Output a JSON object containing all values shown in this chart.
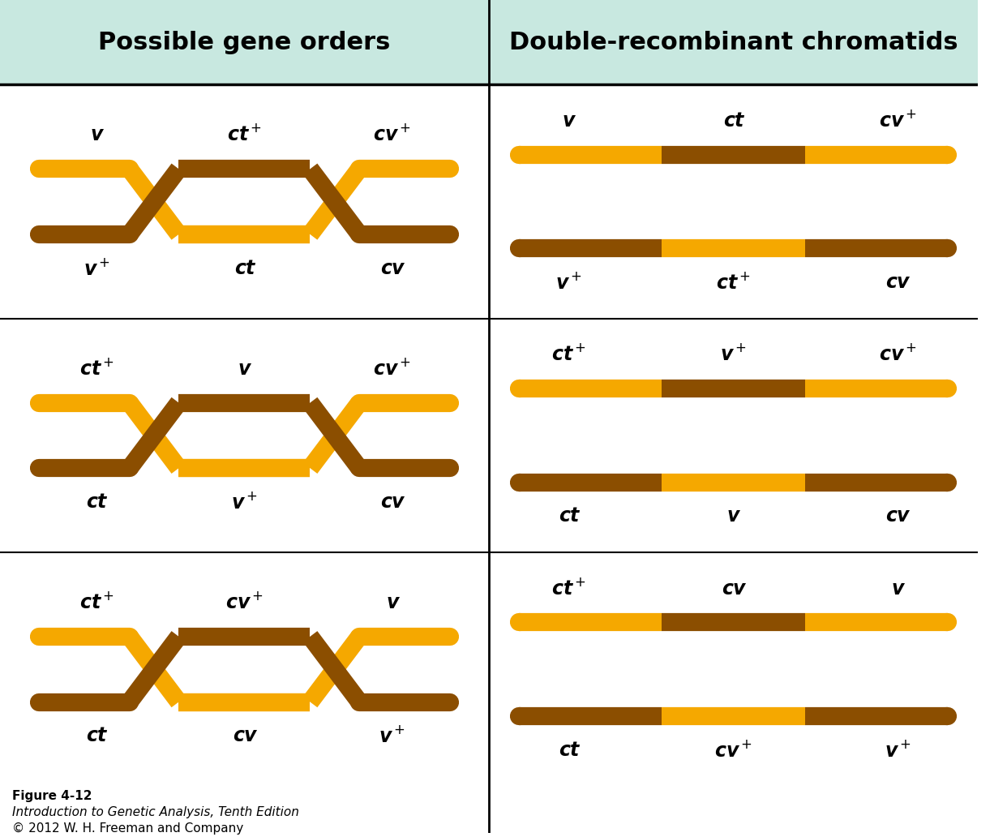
{
  "header_left": "Possible gene orders",
  "header_right": "Double-recombinant chromatids",
  "header_bg": "#c8e8e0",
  "orange_color": "#F5A800",
  "brown_color": "#8B4E00",
  "background_color": "#ffffff",
  "fig_width": 12.42,
  "fig_height": 10.32,
  "rows": [
    {
      "left_labels_top": [
        "v",
        "ct$^+$",
        "cv$^+$"
      ],
      "left_labels_bot": [
        "v$^+$",
        "ct",
        "cv"
      ],
      "right_labels_top": [
        "v",
        "ct",
        "cv$^+$"
      ],
      "right_labels_bot": [
        "v$^+$",
        "ct$^+$",
        "cv"
      ],
      "right_top_segments": [
        "orange",
        "brown",
        "orange"
      ],
      "right_bot_segments": [
        "brown",
        "orange",
        "brown"
      ]
    },
    {
      "left_labels_top": [
        "ct$^+$",
        "v",
        "cv$^+$"
      ],
      "left_labels_bot": [
        "ct",
        "v$^+$",
        "cv"
      ],
      "right_labels_top": [
        "ct$^+$",
        "v$^+$",
        "cv$^+$"
      ],
      "right_labels_bot": [
        "ct",
        "v",
        "cv"
      ],
      "right_top_segments": [
        "orange",
        "brown",
        "orange"
      ],
      "right_bot_segments": [
        "brown",
        "orange",
        "brown"
      ]
    },
    {
      "left_labels_top": [
        "ct$^+$",
        "cv$^+$",
        "v"
      ],
      "left_labels_bot": [
        "ct",
        "cv",
        "v$^+$"
      ],
      "right_labels_top": [
        "ct$^+$",
        "cv",
        "v"
      ],
      "right_labels_bot": [
        "ct",
        "cv$^+$",
        "v$^+$"
      ],
      "right_top_segments": [
        "orange",
        "brown",
        "orange"
      ],
      "right_bot_segments": [
        "brown",
        "orange",
        "brown"
      ]
    }
  ],
  "footnote_lines": [
    "Figure 4-12",
    "Introduction to Genetic Analysis, Tenth Edition",
    "© 2012 W. H. Freeman and Company"
  ]
}
